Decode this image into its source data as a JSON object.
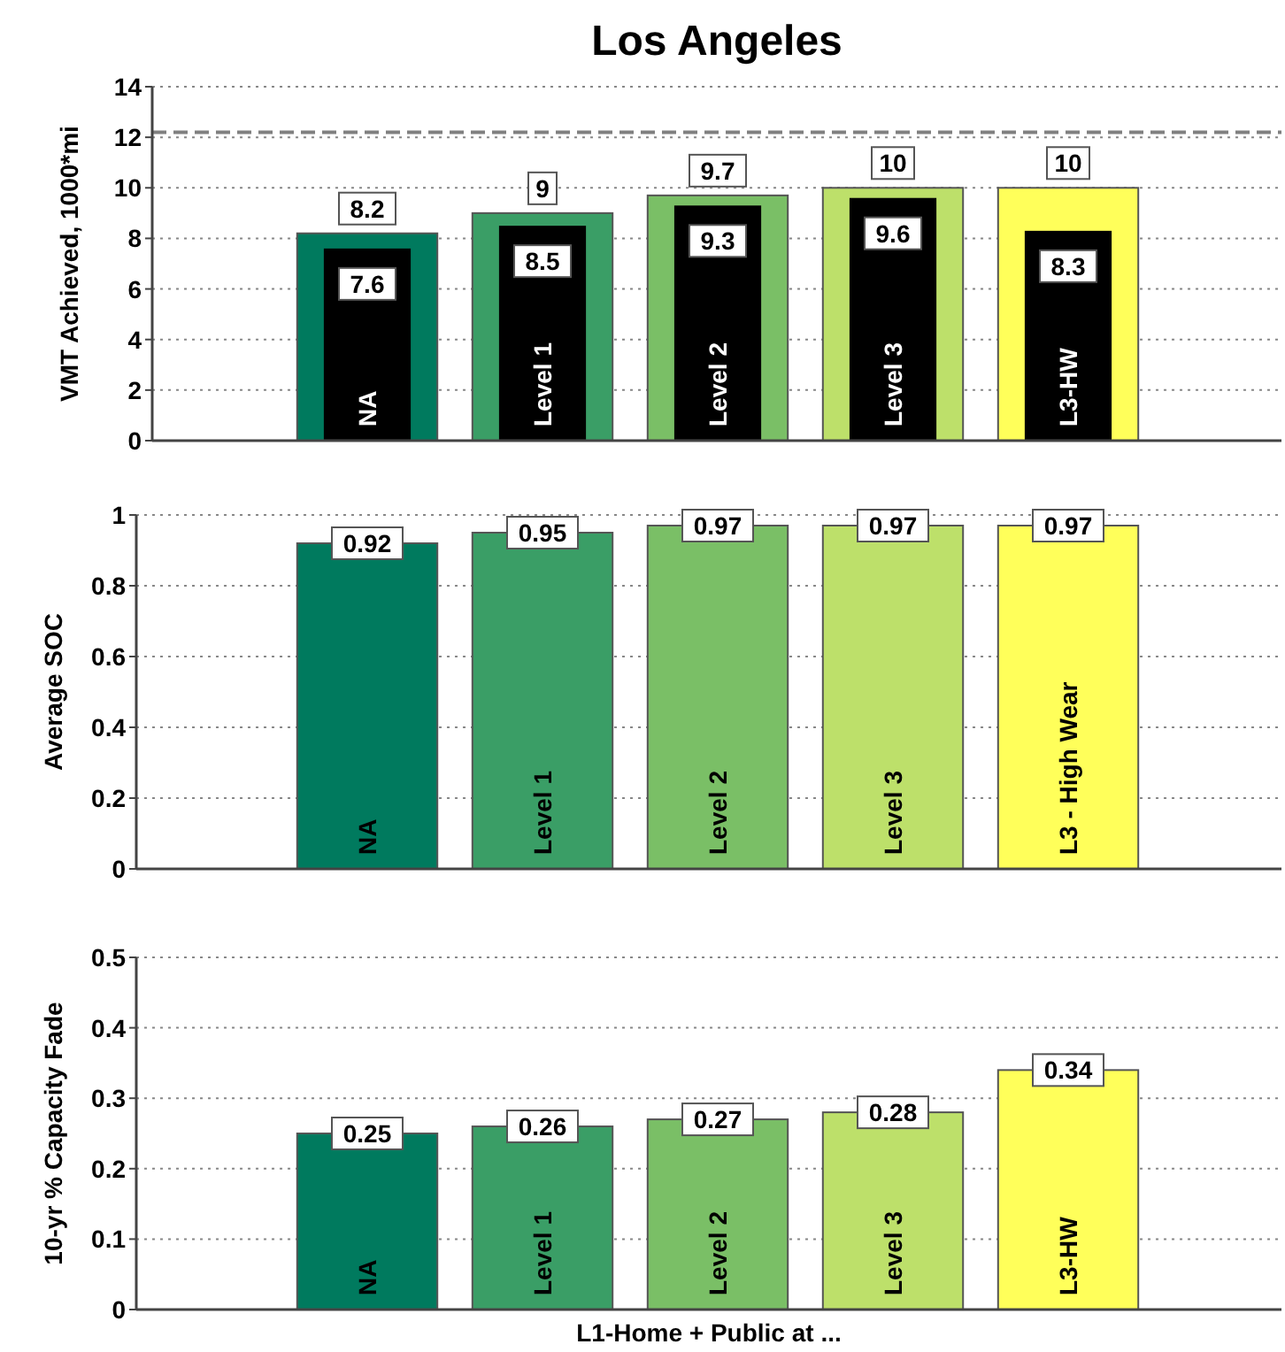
{
  "chart_data": [
    {
      "type": "bar",
      "title": "Los Angeles",
      "ylabel": "VMT Achieved, 1000*mi",
      "categories": [
        "NA",
        "Level 1",
        "Level 2",
        "Level 3",
        "L3-HW"
      ],
      "series": [
        {
          "colors": [
            "#007a5e",
            "#3a9e66",
            "#7abf66",
            "#bde06a",
            "#ffff5a"
          ],
          "values": [
            8.2,
            9,
            9.7,
            10,
            10
          ]
        },
        {
          "color": "#000000",
          "values": [
            7.6,
            8.5,
            9.3,
            9.6,
            8.3
          ]
        }
      ],
      "ylim": [
        0,
        14
      ],
      "yticks": [
        0,
        2,
        4,
        6,
        8,
        10,
        12,
        14
      ],
      "grid": "y",
      "data_labels": true,
      "ref_lines": [
        {
          "axis": "y",
          "value": 12.2,
          "color": "#808080",
          "line_style": "dashed"
        }
      ]
    },
    {
      "type": "bar",
      "ylabel": "Average SOC",
      "categories": [
        "NA",
        "Level 1",
        "Level 2",
        "Level 3",
        "L3 - High Wear"
      ],
      "series": [
        {
          "colors": [
            "#007a5e",
            "#3a9e66",
            "#7abf66",
            "#bde06a",
            "#ffff5a"
          ],
          "values": [
            0.92,
            0.95,
            0.97,
            0.97,
            0.97
          ]
        }
      ],
      "ylim": [
        0,
        1
      ],
      "yticks": [
        0,
        0.2,
        0.4,
        0.6,
        0.8,
        1
      ],
      "grid": "y",
      "data_labels": true
    },
    {
      "type": "bar",
      "ylabel": "10-yr %  Capacity Fade",
      "xlabel": "L1-Home + Public at ...",
      "categories": [
        "NA",
        "Level 1",
        "Level 2",
        "Level 3",
        "L3-HW"
      ],
      "series": [
        {
          "colors": [
            "#007a5e",
            "#3a9e66",
            "#7abf66",
            "#bde06a",
            "#ffff5a"
          ],
          "values": [
            0.25,
            0.26,
            0.27,
            0.28,
            0.34
          ]
        }
      ],
      "ylim": [
        0,
        0.5
      ],
      "yticks": [
        0,
        0.1,
        0.2,
        0.3,
        0.4,
        0.5
      ],
      "grid": "y",
      "data_labels": true
    }
  ]
}
